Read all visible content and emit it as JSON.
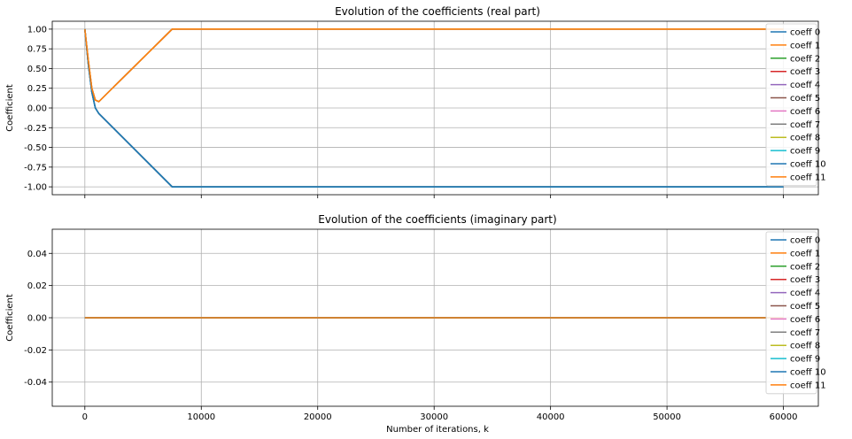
{
  "chart_data": [
    {
      "type": "line",
      "title": "Evolution of the coefficients (real part)",
      "xlabel": "",
      "ylabel": "Coefficient",
      "xlim": [
        -2800,
        63000
      ],
      "ylim": [
        -1.1,
        1.1
      ],
      "xticks": [
        0,
        10000,
        20000,
        30000,
        40000,
        50000,
        60000
      ],
      "xtick_labels_visible": false,
      "yticks": [
        -1.0,
        -0.75,
        -0.5,
        -0.25,
        0.0,
        0.25,
        0.5,
        0.75,
        1.0
      ],
      "ytick_labels": [
        "-1.00",
        "-0.75",
        "-0.50",
        "-0.25",
        "0.00",
        "0.25",
        "0.50",
        "0.75",
        "1.00"
      ],
      "grid": true,
      "legend_position": "top-right",
      "series": [
        {
          "name": "coeff 0",
          "color": "#1f77b4",
          "x": [
            0,
            300,
            600,
            900,
            1200,
            7500,
            30000,
            60000
          ],
          "y": [
            1.0,
            0.55,
            0.2,
            0.0,
            -0.07,
            -1.0,
            -1.0,
            -1.0
          ]
        },
        {
          "name": "coeff 1",
          "color": "#ff7f0e",
          "x": [
            0,
            300,
            600,
            900,
            1200,
            7500,
            30000,
            60000
          ],
          "y": [
            1.0,
            0.6,
            0.25,
            0.1,
            0.08,
            1.0,
            1.0,
            1.0
          ]
        },
        {
          "name": "coeff 2",
          "color": "#2ca02c",
          "x": [
            0,
            300,
            600,
            900,
            1200,
            7500,
            30000,
            60000
          ],
          "y": [
            1.0,
            0.6,
            0.25,
            0.1,
            0.08,
            1.0,
            1.0,
            1.0
          ]
        },
        {
          "name": "coeff 3",
          "color": "#d62728",
          "x": [
            0,
            300,
            600,
            900,
            1200,
            7500,
            30000,
            60000
          ],
          "y": [
            1.0,
            0.55,
            0.2,
            0.0,
            -0.07,
            -1.0,
            -1.0,
            -1.0
          ]
        },
        {
          "name": "coeff 4",
          "color": "#9467bd",
          "x": [
            0,
            300,
            600,
            900,
            1200,
            7500,
            30000,
            60000
          ],
          "y": [
            1.0,
            0.6,
            0.25,
            0.1,
            0.08,
            1.0,
            1.0,
            1.0
          ]
        },
        {
          "name": "coeff 5",
          "color": "#8c564b",
          "x": [
            0,
            300,
            600,
            900,
            1200,
            7500,
            30000,
            60000
          ],
          "y": [
            1.0,
            0.55,
            0.2,
            0.0,
            -0.07,
            -1.0,
            -1.0,
            -1.0
          ]
        },
        {
          "name": "coeff 6",
          "color": "#e377c2",
          "x": [
            0,
            300,
            600,
            900,
            1200,
            7500,
            30000,
            60000
          ],
          "y": [
            1.0,
            0.6,
            0.25,
            0.1,
            0.08,
            1.0,
            1.0,
            1.0
          ]
        },
        {
          "name": "coeff 7",
          "color": "#7f7f7f",
          "x": [
            0,
            300,
            600,
            900,
            1200,
            7500,
            30000,
            60000
          ],
          "y": [
            1.0,
            0.55,
            0.2,
            0.0,
            -0.07,
            -1.0,
            -1.0,
            -1.0
          ]
        },
        {
          "name": "coeff 8",
          "color": "#bcbd22",
          "x": [
            0,
            300,
            600,
            900,
            1200,
            7500,
            30000,
            60000
          ],
          "y": [
            1.0,
            0.6,
            0.25,
            0.1,
            0.08,
            1.0,
            1.0,
            1.0
          ]
        },
        {
          "name": "coeff 9",
          "color": "#17becf",
          "x": [
            0,
            300,
            600,
            900,
            1200,
            7500,
            30000,
            60000
          ],
          "y": [
            1.0,
            0.55,
            0.2,
            0.0,
            -0.07,
            -1.0,
            -1.0,
            -1.0
          ]
        },
        {
          "name": "coeff 10",
          "color": "#1f77b4",
          "x": [
            0,
            300,
            600,
            900,
            1200,
            7500,
            30000,
            60000
          ],
          "y": [
            1.0,
            0.55,
            0.2,
            0.0,
            -0.07,
            -1.0,
            -1.0,
            -1.0
          ]
        },
        {
          "name": "coeff 11",
          "color": "#ff7f0e",
          "x": [
            0,
            300,
            600,
            900,
            1200,
            7500,
            30000,
            60000
          ],
          "y": [
            1.0,
            0.6,
            0.25,
            0.1,
            0.08,
            1.0,
            1.0,
            1.0
          ]
        }
      ]
    },
    {
      "type": "line",
      "title": "Evolution of the coefficients (imaginary part)",
      "xlabel": "Number of iterations, k",
      "ylabel": "Coefficient",
      "xlim": [
        -2800,
        63000
      ],
      "ylim": [
        -0.055,
        0.055
      ],
      "xticks": [
        0,
        10000,
        20000,
        30000,
        40000,
        50000,
        60000
      ],
      "xtick_labels": [
        "0",
        "10000",
        "20000",
        "30000",
        "40000",
        "50000",
        "60000"
      ],
      "xtick_labels_visible": true,
      "yticks": [
        -0.04,
        -0.02,
        0.0,
        0.02,
        0.04
      ],
      "ytick_labels": [
        "-0.04",
        "-0.02",
        "0.00",
        "0.02",
        "0.04"
      ],
      "grid": true,
      "legend_position": "top-right",
      "series": [
        {
          "name": "coeff 0",
          "color": "#1f77b4",
          "x": [
            0,
            60000
          ],
          "y": [
            0.0,
            0.0
          ]
        },
        {
          "name": "coeff 1",
          "color": "#ff7f0e",
          "x": [
            0,
            60000
          ],
          "y": [
            0.0,
            0.0
          ]
        },
        {
          "name": "coeff 2",
          "color": "#2ca02c",
          "x": [
            0,
            60000
          ],
          "y": [
            0.0,
            0.0
          ]
        },
        {
          "name": "coeff 3",
          "color": "#d62728",
          "x": [
            0,
            60000
          ],
          "y": [
            0.0,
            0.0
          ]
        },
        {
          "name": "coeff 4",
          "color": "#9467bd",
          "x": [
            0,
            60000
          ],
          "y": [
            0.0,
            0.0
          ]
        },
        {
          "name": "coeff 5",
          "color": "#8c564b",
          "x": [
            0,
            60000
          ],
          "y": [
            0.0,
            0.0
          ]
        },
        {
          "name": "coeff 6",
          "color": "#e377c2",
          "x": [
            0,
            60000
          ],
          "y": [
            0.0,
            0.0
          ]
        },
        {
          "name": "coeff 7",
          "color": "#7f7f7f",
          "x": [
            0,
            60000
          ],
          "y": [
            0.0,
            0.0
          ]
        },
        {
          "name": "coeff 8",
          "color": "#bcbd22",
          "x": [
            0,
            60000
          ],
          "y": [
            0.0,
            0.0
          ]
        },
        {
          "name": "coeff 9",
          "color": "#17becf",
          "x": [
            0,
            60000
          ],
          "y": [
            0.0,
            0.0
          ]
        },
        {
          "name": "coeff 10",
          "color": "#1f77b4",
          "x": [
            0,
            60000
          ],
          "y": [
            0.0,
            0.0
          ]
        },
        {
          "name": "coeff 11",
          "color": "#ff7f0e",
          "x": [
            0,
            60000
          ],
          "y": [
            0.0,
            0.0
          ]
        }
      ]
    }
  ]
}
